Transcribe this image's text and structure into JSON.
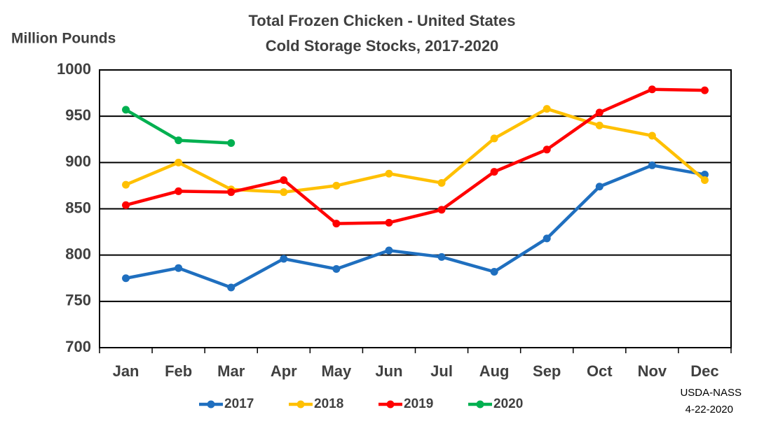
{
  "chart_data": {
    "type": "line",
    "title": "Total Frozen Chicken - United States",
    "subtitle": "Cold Storage Stocks, 2017-2020",
    "y_label": "Million Pounds",
    "annotations": [
      "USDA-NASS",
      "4-22-2020"
    ],
    "categories": [
      "Jan",
      "Feb",
      "Mar",
      "Apr",
      "May",
      "Jun",
      "Jul",
      "Aug",
      "Sep",
      "Oct",
      "Nov",
      "Dec"
    ],
    "series": [
      {
        "name": "2017",
        "color": "#1f6fbf",
        "values": [
          775,
          786,
          765,
          796,
          785,
          805,
          798,
          782,
          818,
          874,
          897,
          887
        ]
      },
      {
        "name": "2018",
        "color": "#ffc000",
        "values": [
          876,
          900,
          871,
          868,
          875,
          888,
          878,
          926,
          958,
          940,
          929,
          881
        ]
      },
      {
        "name": "2019",
        "color": "#ff0000",
        "values": [
          854,
          869,
          868,
          881,
          834,
          835,
          849,
          890,
          914,
          954,
          979,
          978
        ]
      },
      {
        "name": "2020",
        "color": "#00b050",
        "values": [
          957,
          924,
          921,
          null,
          null,
          null,
          null,
          null,
          null,
          null,
          null,
          null
        ]
      }
    ],
    "ylim": [
      700,
      1000
    ],
    "yticks": [
      700,
      750,
      800,
      850,
      900,
      950,
      1000
    ],
    "grid": true,
    "legend": "bottom"
  }
}
